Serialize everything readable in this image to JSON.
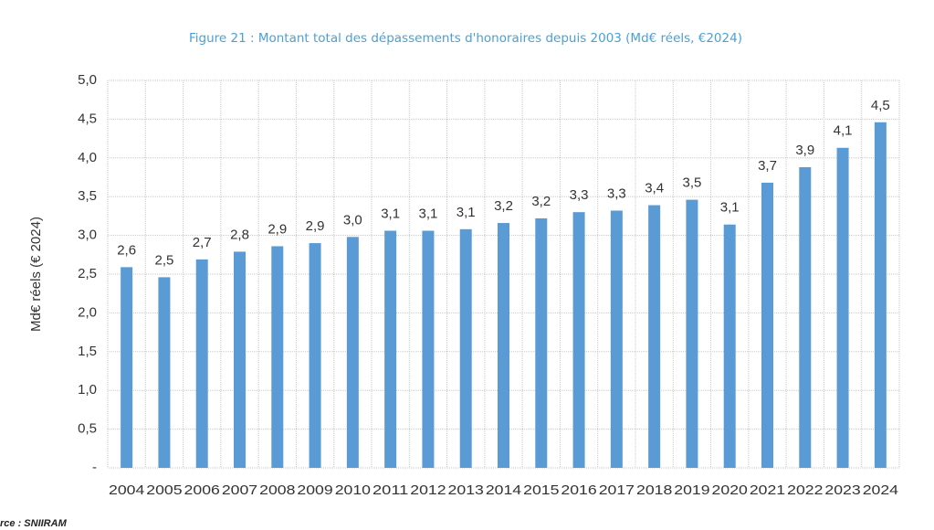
{
  "chart_data": {
    "type": "bar",
    "title": "Figure 21 : Montant total des dépassements d'honoraires depuis 2003 (Md€ réels, €2024)",
    "y_label": "Md€ réels (€ 2024)",
    "source": "rce : SNIIRAM",
    "categories": [
      "2004",
      "2005",
      "2006",
      "2007",
      "2008",
      "2009",
      "2010",
      "2011",
      "2012",
      "2013",
      "2014",
      "2015",
      "2016",
      "2017",
      "2018",
      "2019",
      "2020",
      "2021",
      "2022",
      "2023",
      "2024"
    ],
    "values": [
      2.59,
      2.46,
      2.69,
      2.79,
      2.86,
      2.9,
      2.98,
      3.06,
      3.06,
      3.08,
      3.16,
      3.22,
      3.3,
      3.32,
      3.39,
      3.46,
      3.14,
      3.68,
      3.88,
      4.13,
      4.46
    ],
    "value_labels": [
      "2,6",
      "2,5",
      "2,7",
      "2,8",
      "2,9",
      "2,9",
      "3,0",
      "3,1",
      "3,1",
      "3,1",
      "3,2",
      "3,2",
      "3,3",
      "3,3",
      "3,4",
      "3,5",
      "3,1",
      "3,7",
      "3,9",
      "4,1",
      "4,5"
    ],
    "color": "#5b9bd5",
    "ylim": [
      0,
      5
    ],
    "yticks": [
      {
        "value": 0,
        "label": "-"
      },
      {
        "value": 0.5,
        "label": "0,5"
      },
      {
        "value": 1,
        "label": "1,0"
      },
      {
        "value": 1.5,
        "label": "1,5"
      },
      {
        "value": 2,
        "label": "2,0"
      },
      {
        "value": 2.5,
        "label": "2,5"
      },
      {
        "value": 3,
        "label": "3,0"
      },
      {
        "value": 3.5,
        "label": "3,5"
      },
      {
        "value": 4,
        "label": "4,0"
      },
      {
        "value": 4.5,
        "label": "4,5"
      },
      {
        "value": 5,
        "label": "5,0"
      }
    ],
    "grid": true
  }
}
